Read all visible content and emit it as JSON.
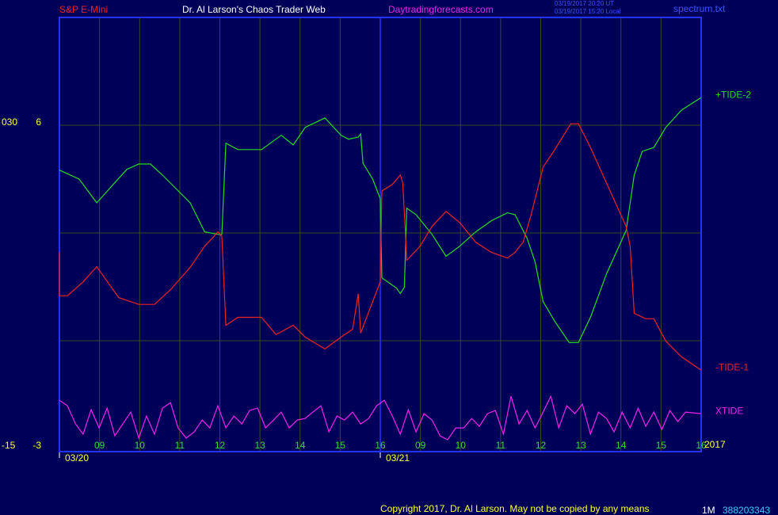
{
  "header": {
    "instrument": "S&P E-Mini",
    "site": "Dr. Al Larson's Chaos Trader Web",
    "url": "Daytradingforecasts.com",
    "time_ut": "03/19/2017 20:20 UT",
    "time_local": "03/19/2017 15:20 Local",
    "file": "spectrum.txt"
  },
  "footer": {
    "copyright": "Copyright 2017, Dr. Al Larson. May not be copied by any means",
    "code1": "1M",
    "code2": "388203343"
  },
  "chart_data": {
    "type": "line",
    "xlim": [
      0,
      16
    ],
    "xticks": [
      {
        "value": 1,
        "label": "09"
      },
      {
        "value": 2,
        "label": "10"
      },
      {
        "value": 3,
        "label": "11"
      },
      {
        "value": 4,
        "label": "12"
      },
      {
        "value": 5,
        "label": "13"
      },
      {
        "value": 6,
        "label": "14"
      },
      {
        "value": 7,
        "label": "15"
      },
      {
        "value": 8,
        "label": "16"
      },
      {
        "value": 9,
        "label": "09"
      },
      {
        "value": 10,
        "label": "10"
      },
      {
        "value": 11,
        "label": "11"
      },
      {
        "value": 12,
        "label": "12"
      },
      {
        "value": 13,
        "label": "13"
      },
      {
        "value": 14,
        "label": "14"
      },
      {
        "value": 15,
        "label": "15"
      },
      {
        "value": 16,
        "label": "16"
      }
    ],
    "day_starts": [
      {
        "value": 0,
        "label": "03/20"
      },
      {
        "value": 8,
        "label": "03/21"
      }
    ],
    "year": "2017",
    "ylim": [
      -3,
      9
    ],
    "yticks": [
      6,
      -3
    ],
    "grid_lines": [
      0,
      3,
      6
    ],
    "y2lim": [
      -15,
      45
    ],
    "y2ticks": [
      {
        "value": 30,
        "label": "030"
      },
      -15
    ],
    "grid": true,
    "series": [
      {
        "name": "+TIDE-2",
        "color": "#22dd22",
        "x": [
          0,
          0.49,
          0.93,
          1.68,
          1.98,
          2.27,
          2.57,
          3.26,
          3.62,
          3.95,
          4.05,
          4.15,
          4.45,
          5.04,
          5.53,
          5.83,
          6.13,
          6.62,
          7.02,
          7.21,
          7.45,
          7.51,
          7.57,
          7.81,
          8.0,
          8.04,
          8.4,
          8.5,
          8.6,
          8.66,
          8.89,
          9.29,
          9.64,
          9.98,
          10.38,
          10.77,
          11.17,
          11.36,
          11.66,
          11.86,
          12.06,
          12.35,
          12.71,
          12.94,
          13.24,
          13.64,
          14.13,
          14.33,
          14.53,
          14.82,
          15.12,
          15.51,
          16
        ],
        "values": [
          4.75,
          4.5,
          3.84,
          4.77,
          4.92,
          4.92,
          4.61,
          3.84,
          3.03,
          2.96,
          2.96,
          5.5,
          5.32,
          5.32,
          5.72,
          5.45,
          5.94,
          6.2,
          5.72,
          5.61,
          5.67,
          5.76,
          4.94,
          4.5,
          3.95,
          1.75,
          1.47,
          1.31,
          1.49,
          3.69,
          3.51,
          2.96,
          2.35,
          2.63,
          3.03,
          3.34,
          3.56,
          3.51,
          2.85,
          2.19,
          1.09,
          0.54,
          -0.05,
          -0.05,
          0.65,
          1.86,
          3.07,
          4.61,
          5.27,
          5.38,
          5.94,
          6.42,
          6.77
        ]
      },
      {
        "name": "-TIDE-1",
        "color": "#ee2222",
        "x": [
          0,
          0,
          0.2,
          0.59,
          0.93,
          1.48,
          1.98,
          2.37,
          2.77,
          3.26,
          3.62,
          3.85,
          3.95,
          4.05,
          4.15,
          4.45,
          5.04,
          5.4,
          5.83,
          6.13,
          6.62,
          7.02,
          7.31,
          7.45,
          7.51,
          7.81,
          8.0,
          8.04,
          8.3,
          8.5,
          8.56,
          8.66,
          8.99,
          9.29,
          9.64,
          9.98,
          10.38,
          10.77,
          11.17,
          11.36,
          11.56,
          11.76,
          12.06,
          12.35,
          12.75,
          12.94,
          13.24,
          13.64,
          14.13,
          14.23,
          14.33,
          14.62,
          14.82,
          15.12,
          15.51,
          16
        ],
        "values": [
          2.46,
          1.25,
          1.25,
          1.64,
          2.06,
          1.2,
          1.01,
          1.01,
          1.42,
          2.04,
          2.63,
          2.9,
          3.03,
          2.9,
          0.43,
          0.65,
          0.65,
          0.17,
          0.43,
          0.1,
          -0.23,
          0.1,
          0.32,
          1.31,
          0.21,
          1.09,
          1.64,
          4.17,
          4.35,
          4.61,
          4.39,
          2.24,
          2.63,
          3.18,
          3.6,
          3.29,
          2.74,
          2.46,
          2.3,
          2.46,
          2.74,
          3.51,
          4.83,
          5.32,
          6.04,
          6.04,
          5.38,
          4.39,
          3.18,
          2.63,
          0.76,
          0.61,
          0.61,
          -0.01,
          -0.45,
          -0.82
        ]
      },
      {
        "name": "XTIDE",
        "color": "#ee22ee",
        "axis": "y2",
        "x": [
          0,
          0.2,
          0.4,
          0.59,
          0.79,
          0.99,
          1.19,
          1.38,
          1.58,
          1.78,
          1.98,
          2.17,
          2.37,
          2.57,
          2.77,
          2.96,
          3.16,
          3.36,
          3.56,
          3.75,
          3.95,
          4.15,
          4.35,
          4.55,
          4.74,
          4.94,
          5.14,
          5.34,
          5.53,
          5.73,
          5.93,
          6.13,
          6.32,
          6.52,
          6.72,
          6.92,
          7.11,
          7.31,
          7.51,
          7.71,
          7.91,
          8.1,
          8.3,
          8.5,
          8.7,
          8.89,
          9.09,
          9.29,
          9.49,
          9.68,
          9.88,
          10.08,
          10.28,
          10.47,
          10.67,
          10.87,
          11.07,
          11.26,
          11.46,
          11.66,
          11.86,
          12.06,
          12.25,
          12.45,
          12.65,
          12.85,
          13.04,
          13.24,
          13.44,
          13.64,
          13.83,
          14.03,
          14.23,
          14.43,
          14.62,
          14.82,
          15.02,
          15.22,
          15.42,
          15.61,
          15.81,
          16
        ],
        "values": [
          -8.29,
          -9.06,
          -11.59,
          -13.02,
          -9.61,
          -12.14,
          -9.39,
          -13.24,
          -11.59,
          -9.94,
          -13.57,
          -10.49,
          -13.02,
          -9.39,
          -8.62,
          -12.14,
          -13.57,
          -12.69,
          -11.04,
          -12.14,
          -9.06,
          -12.14,
          -10.49,
          -11.59,
          -9.72,
          -9.39,
          -12.14,
          -11.04,
          -9.94,
          -12.14,
          -11.04,
          -10.82,
          -9.94,
          -9.06,
          -12.69,
          -10.49,
          -11.04,
          -9.94,
          -11.59,
          -10.82,
          -9.06,
          -8.29,
          -10.49,
          -13.02,
          -9.61,
          -12.69,
          -10.16,
          -11.04,
          -13.24,
          -13.79,
          -12.14,
          -12.14,
          -10.82,
          -11.92,
          -10.16,
          -9.72,
          -13.02,
          -7.74,
          -11.59,
          -9.72,
          -12.14,
          -9.94,
          -7.74,
          -12.14,
          -9.06,
          -10.16,
          -8.84,
          -13.02,
          -9.94,
          -10.82,
          -12.69,
          -9.94,
          -12.14,
          -9.39,
          -11.92,
          -9.94,
          -12.36,
          -9.72,
          -11.26,
          -9.94,
          -10.05,
          -10.16
        ]
      }
    ]
  }
}
